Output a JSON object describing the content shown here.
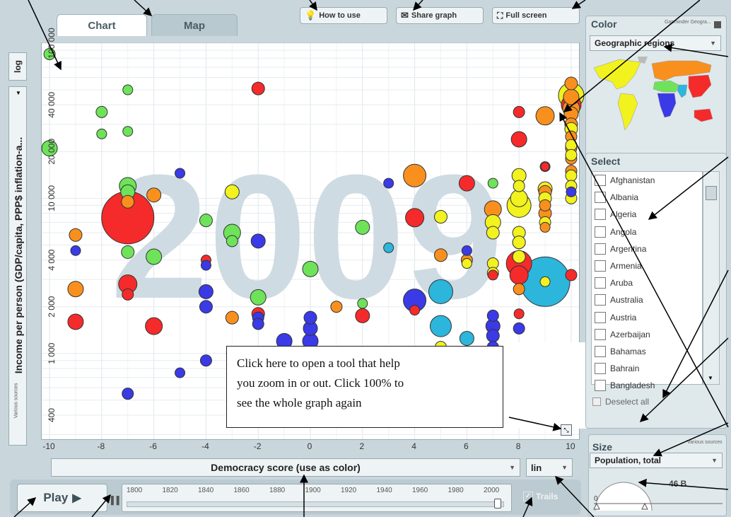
{
  "tabs": {
    "chart": "Chart",
    "map": "Map"
  },
  "toolbar": {
    "how_to_use": "How to use",
    "share_graph": "Share graph",
    "full_screen": "Full screen"
  },
  "y_axis": {
    "scale": "log",
    "label": "Income per person (GDP/capita, PPP$ inflation-a...",
    "source": "Various sources"
  },
  "x_axis": {
    "label": "Democracy score (use as color)",
    "scale": "lin"
  },
  "year_watermark": "2009",
  "color_panel": {
    "title": "Color",
    "source": "Gapminder Geogra...",
    "selected": "Geographic regions"
  },
  "select_panel": {
    "title": "Select",
    "countries": [
      "Afghanistan",
      "Albania",
      "Algeria",
      "Angola",
      "Argentina",
      "Armenia",
      "Aruba",
      "Australia",
      "Austria",
      "Azerbaijan",
      "Bahamas",
      "Bahrain",
      "Bangladesh"
    ],
    "deselect": "Deselect all"
  },
  "size_panel": {
    "title": "Size",
    "source": "Various sources",
    "selected": "Population, total",
    "max_label": "46 B",
    "min_label": "0"
  },
  "playback": {
    "play": "Play",
    "trails": "Trails",
    "years": [
      "1800",
      "1820",
      "1840",
      "1860",
      "1880",
      "1900",
      "1920",
      "1940",
      "1960",
      "1980",
      "2000"
    ]
  },
  "tooltip": {
    "lines": [
      "Click here to open a tool that help",
      "you zoom in or out. Click 100% to",
      "see the whole graph again"
    ]
  },
  "colors": {
    "americas": "#f2f21e",
    "europe_central_asia": "#f9901e",
    "east_asia_pacific": "#f52a2a",
    "middle_east_north_africa": "#6ee35a",
    "sub_saharan_africa": "#3a3ae6",
    "south_asia": "#2cb6dc",
    "background": "#c9d7dd"
  },
  "chart_data": {
    "type": "scatter",
    "title": "",
    "xlabel": "Democracy score (use as color)",
    "ylabel": "Income per person (GDP/capita, PPP$ inflation-a...",
    "xlim": [
      -10.3,
      10.3
    ],
    "ylim": [
      280,
      100000
    ],
    "yscale": "log",
    "x_ticks": [
      -10,
      -8,
      -6,
      -4,
      -2,
      0,
      2,
      4,
      6,
      8,
      10
    ],
    "y_ticks": [
      400,
      1000,
      2000,
      4000,
      10000,
      20000,
      40000,
      100000
    ],
    "y_tick_labels": [
      "400",
      "1 000",
      "2 000",
      "4 000",
      "10 000",
      "20 000",
      "40 000",
      "100 000"
    ],
    "series": [
      {
        "region": "middle_east_north_africa",
        "points": [
          {
            "x": -10,
            "y": 85000,
            "s": 8
          },
          {
            "x": -10,
            "y": 21000,
            "s": 11
          },
          {
            "x": -8,
            "y": 36000,
            "s": 8
          },
          {
            "x": -8,
            "y": 26000,
            "s": 7
          },
          {
            "x": -7,
            "y": 50000,
            "s": 7
          },
          {
            "x": -7,
            "y": 27000,
            "s": 7
          },
          {
            "x": -7,
            "y": 12000,
            "s": 12
          },
          {
            "x": -7,
            "y": 11000,
            "s": 10
          },
          {
            "x": -7,
            "y": 4500,
            "s": 9
          },
          {
            "x": -6,
            "y": 4200,
            "s": 11
          },
          {
            "x": -4,
            "y": 7200,
            "s": 9
          },
          {
            "x": -3,
            "y": 6000,
            "s": 12
          },
          {
            "x": -3,
            "y": 5300,
            "s": 8
          },
          {
            "x": -2,
            "y": 2300,
            "s": 11
          },
          {
            "x": 0,
            "y": 3500,
            "s": 11
          },
          {
            "x": 2,
            "y": 6500,
            "s": 10
          },
          {
            "x": 2,
            "y": 2100,
            "s": 7
          },
          {
            "x": 7,
            "y": 12500,
            "s": 7
          }
        ]
      },
      {
        "region": "east_asia_pacific",
        "points": [
          {
            "x": -7,
            "y": 7500,
            "s": 37
          },
          {
            "x": -7,
            "y": 2800,
            "s": 13
          },
          {
            "x": -7,
            "y": 2400,
            "s": 8
          },
          {
            "x": -9,
            "y": 1600,
            "s": 11
          },
          {
            "x": -6,
            "y": 1500,
            "s": 12
          },
          {
            "x": -4,
            "y": 4000,
            "s": 7
          },
          {
            "x": -2,
            "y": 51000,
            "s": 9
          },
          {
            "x": -2,
            "y": 1800,
            "s": 9
          },
          {
            "x": 2,
            "y": 1750,
            "s": 10
          },
          {
            "x": 4,
            "y": 7500,
            "s": 13
          },
          {
            "x": 4,
            "y": 1900,
            "s": 7
          },
          {
            "x": 6,
            "y": 12500,
            "s": 11
          },
          {
            "x": 7,
            "y": 3200,
            "s": 7
          },
          {
            "x": 8,
            "y": 36000,
            "s": 8
          },
          {
            "x": 8,
            "y": 24000,
            "s": 11
          },
          {
            "x": 8,
            "y": 3800,
            "s": 18
          },
          {
            "x": 8,
            "y": 3200,
            "s": 13
          },
          {
            "x": 8,
            "y": 1800,
            "s": 7
          },
          {
            "x": 9,
            "y": 16000,
            "s": 6
          },
          {
            "x": 10,
            "y": 40000,
            "s": 14
          },
          {
            "x": 10,
            "y": 3200,
            "s": 8
          }
        ]
      },
      {
        "region": "europe_central_asia",
        "points": [
          {
            "x": -9,
            "y": 5800,
            "s": 9
          },
          {
            "x": -9,
            "y": 2600,
            "s": 11
          },
          {
            "x": -6,
            "y": 10500,
            "s": 10
          },
          {
            "x": -7,
            "y": 9500,
            "s": 9
          },
          {
            "x": -3,
            "y": 1700,
            "s": 9
          },
          {
            "x": 1,
            "y": 2000,
            "s": 8
          },
          {
            "x": 4,
            "y": 14000,
            "s": 16
          },
          {
            "x": 5,
            "y": 4300,
            "s": 9
          },
          {
            "x": 6,
            "y": 4000,
            "s": 8
          },
          {
            "x": 7,
            "y": 8500,
            "s": 12
          },
          {
            "x": 8,
            "y": 5200,
            "s": 9
          },
          {
            "x": 8,
            "y": 2600,
            "s": 8
          },
          {
            "x": 9,
            "y": 34000,
            "s": 13
          },
          {
            "x": 9,
            "y": 16000,
            "s": 7
          },
          {
            "x": 9,
            "y": 11000,
            "s": 9
          },
          {
            "x": 9,
            "y": 9000,
            "s": 8
          },
          {
            "x": 9,
            "y": 8000,
            "s": 9
          },
          {
            "x": 9,
            "y": 6500,
            "s": 7
          },
          {
            "x": 10,
            "y": 55000,
            "s": 9
          },
          {
            "x": 10,
            "y": 45000,
            "s": 11
          },
          {
            "x": 10,
            "y": 38000,
            "s": 12
          },
          {
            "x": 10,
            "y": 35000,
            "s": 10
          },
          {
            "x": 10,
            "y": 30000,
            "s": 9
          },
          {
            "x": 10,
            "y": 25000,
            "s": 8
          },
          {
            "x": 10,
            "y": 21000,
            "s": 8
          },
          {
            "x": 10,
            "y": 18000,
            "s": 8
          },
          {
            "x": 10,
            "y": 15000,
            "s": 8
          }
        ]
      },
      {
        "region": "americas",
        "points": [
          {
            "x": -3,
            "y": 11000,
            "s": 10
          },
          {
            "x": 5,
            "y": 7600,
            "s": 9
          },
          {
            "x": 5,
            "y": 1100,
            "s": 8
          },
          {
            "x": 6,
            "y": 3800,
            "s": 7
          },
          {
            "x": 7,
            "y": 7000,
            "s": 11
          },
          {
            "x": 7,
            "y": 6000,
            "s": 9
          },
          {
            "x": 7,
            "y": 3800,
            "s": 8
          },
          {
            "x": 7,
            "y": 3300,
            "s": 8
          },
          {
            "x": 8,
            "y": 14000,
            "s": 10
          },
          {
            "x": 8,
            "y": 12000,
            "s": 8
          },
          {
            "x": 8,
            "y": 10000,
            "s": 12
          },
          {
            "x": 8,
            "y": 9000,
            "s": 17
          },
          {
            "x": 8,
            "y": 6000,
            "s": 9
          },
          {
            "x": 8,
            "y": 5200,
            "s": 9
          },
          {
            "x": 8,
            "y": 4200,
            "s": 9
          },
          {
            "x": 9,
            "y": 11500,
            "s": 10
          },
          {
            "x": 9,
            "y": 10000,
            "s": 9
          },
          {
            "x": 9,
            "y": 7000,
            "s": 8
          },
          {
            "x": 9,
            "y": 2900,
            "s": 7
          },
          {
            "x": 10,
            "y": 46000,
            "s": 18
          },
          {
            "x": 10,
            "y": 28000,
            "s": 9
          },
          {
            "x": 10,
            "y": 22000,
            "s": 8
          },
          {
            "x": 10,
            "y": 19000,
            "s": 8
          },
          {
            "x": 10,
            "y": 14000,
            "s": 8
          },
          {
            "x": 10,
            "y": 12000,
            "s": 8
          },
          {
            "x": 10,
            "y": 10000,
            "s": 8
          }
        ]
      },
      {
        "region": "sub_saharan_africa",
        "points": [
          {
            "x": -9,
            "y": 4600,
            "s": 7
          },
          {
            "x": -7,
            "y": 550,
            "s": 8
          },
          {
            "x": -5,
            "y": 14500,
            "s": 7
          },
          {
            "x": -5,
            "y": 750,
            "s": 7
          },
          {
            "x": -4,
            "y": 3700,
            "s": 7
          },
          {
            "x": -4,
            "y": 2500,
            "s": 10
          },
          {
            "x": -4,
            "y": 2000,
            "s": 9
          },
          {
            "x": -4,
            "y": 900,
            "s": 8
          },
          {
            "x": -3,
            "y": 1000,
            "s": 8
          },
          {
            "x": -2,
            "y": 5300,
            "s": 10
          },
          {
            "x": -2,
            "y": 1700,
            "s": 8
          },
          {
            "x": -2,
            "y": 1550,
            "s": 8
          },
          {
            "x": -1,
            "y": 1200,
            "s": 11
          },
          {
            "x": 0,
            "y": 1700,
            "s": 9
          },
          {
            "x": 0,
            "y": 1450,
            "s": 10
          },
          {
            "x": 0,
            "y": 1200,
            "s": 11
          },
          {
            "x": 3,
            "y": 12500,
            "s": 7
          },
          {
            "x": 4,
            "y": 2200,
            "s": 16
          },
          {
            "x": 6,
            "y": 4600,
            "s": 7
          },
          {
            "x": 7,
            "y": 1750,
            "s": 8
          },
          {
            "x": 7,
            "y": 1500,
            "s": 10
          },
          {
            "x": 7,
            "y": 1300,
            "s": 9
          },
          {
            "x": 7,
            "y": 1100,
            "s": 8
          },
          {
            "x": 8,
            "y": 1450,
            "s": 8
          },
          {
            "x": 10,
            "y": 11000,
            "s": 7
          }
        ]
      },
      {
        "region": "south_asia",
        "points": [
          {
            "x": 3,
            "y": 4800,
            "s": 7
          },
          {
            "x": 5,
            "y": 2500,
            "s": 17
          },
          {
            "x": 5,
            "y": 1500,
            "s": 15
          },
          {
            "x": 6,
            "y": 1250,
            "s": 10
          },
          {
            "x": 9,
            "y": 2900,
            "s": 35
          }
        ]
      }
    ]
  }
}
